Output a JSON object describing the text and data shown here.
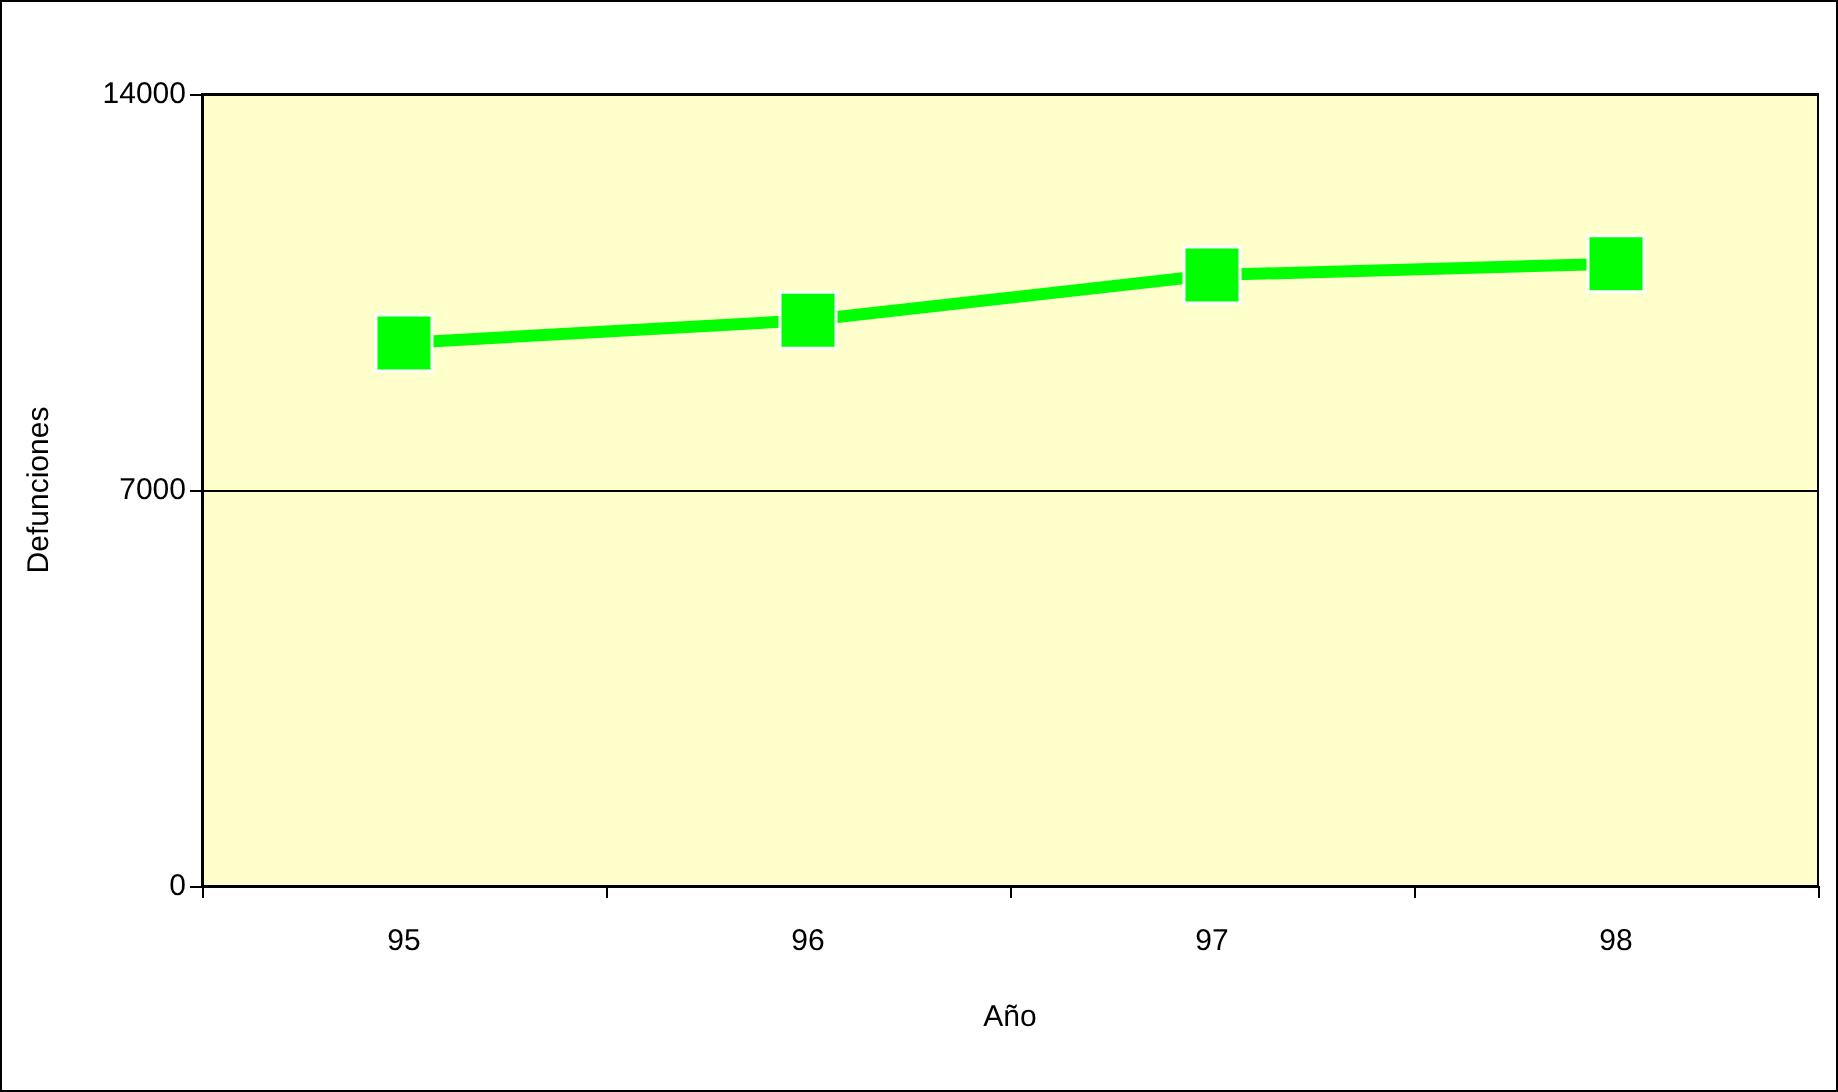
{
  "chart_data": {
    "type": "line",
    "xlabel": "Año",
    "ylabel": "Defunciones",
    "categories": [
      "95",
      "96",
      "97",
      "98"
    ],
    "series": [
      {
        "color": "#00ff00",
        "values": [
          9600,
          10000,
          10800,
          11000
        ]
      }
    ],
    "ylim": [
      0,
      14000
    ],
    "yticks": [
      0,
      7000,
      14000
    ],
    "grid": "y",
    "marker": "square",
    "line_style": "solid"
  }
}
